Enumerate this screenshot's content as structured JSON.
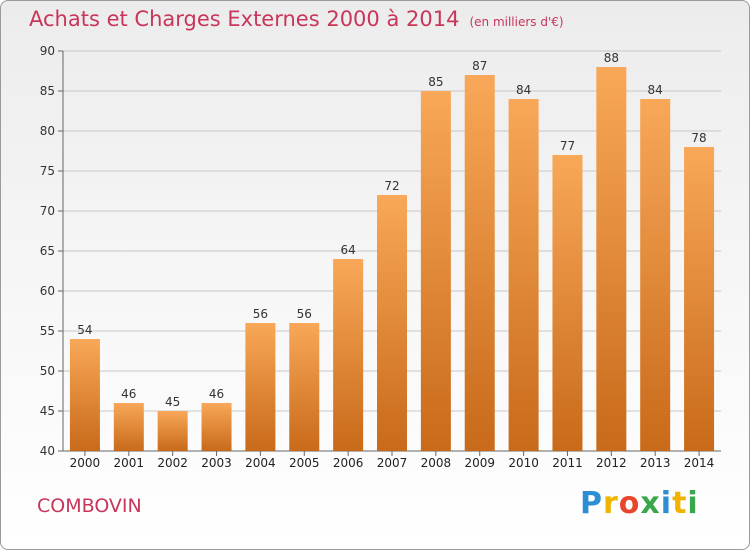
{
  "header": {
    "title": "Achats et Charges Externes 2000 à 2014",
    "subtitle": "(en milliers d'€)"
  },
  "footer": {
    "commune": "COMBOVIN",
    "brand": [
      "P",
      "r",
      "o",
      "x",
      "i",
      "t",
      "i"
    ],
    "brand_colors": [
      "#2c8fd4",
      "#f0b400",
      "#e8462a",
      "#3aa84a",
      "#2c8fd4",
      "#f0b400",
      "#3aa84a"
    ]
  },
  "colors": {
    "bar_light": "#f8a858",
    "bar_dark": "#c86a1a",
    "accent": "#c8365a"
  },
  "chart_data": {
    "type": "bar",
    "categories": [
      "2000",
      "2001",
      "2002",
      "2003",
      "2004",
      "2005",
      "2006",
      "2007",
      "2008",
      "2009",
      "2010",
      "2011",
      "2012",
      "2013",
      "2014"
    ],
    "values": [
      54,
      46,
      45,
      46,
      56,
      56,
      64,
      72,
      85,
      87,
      84,
      77,
      88,
      84,
      78
    ],
    "title": "Achats et Charges Externes 2000 à 2014",
    "subtitle": "(en milliers d'€)",
    "xlabel": "",
    "ylabel": "",
    "ylim": [
      40,
      90
    ],
    "yticks": [
      40,
      45,
      50,
      55,
      60,
      65,
      70,
      75,
      80,
      85,
      90
    ],
    "grid": true,
    "legend": "none"
  }
}
